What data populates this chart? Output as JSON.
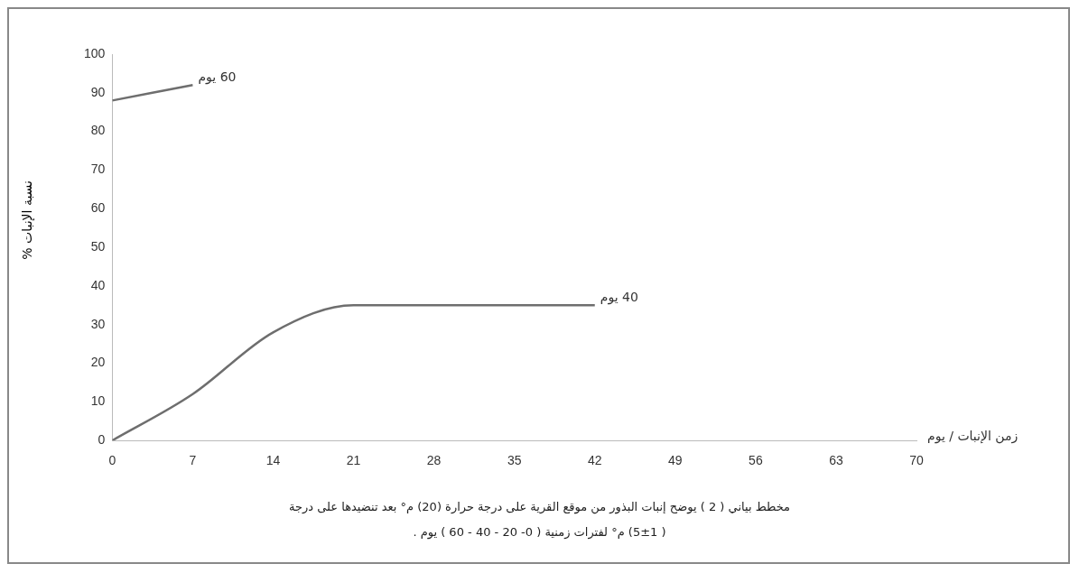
{
  "chart_data": {
    "type": "line",
    "xlabel": "زمن الإنبات / يوم",
    "ylabel": "نسبة الإنبات %",
    "xlim": [
      0,
      70
    ],
    "xticks": [
      0,
      7,
      14,
      21,
      28,
      35,
      42,
      49,
      56,
      63,
      70
    ],
    "ylim": [
      0,
      100
    ],
    "yticks": [
      0,
      10,
      20,
      30,
      40,
      50,
      60,
      70,
      80,
      90,
      100
    ],
    "grid": false,
    "legend": false,
    "series": [
      {
        "name": "60 يوم",
        "color": "#6e6e6e",
        "x": [
          0,
          7
        ],
        "values": [
          88,
          92
        ]
      },
      {
        "name": "40 يوم",
        "color": "#6e6e6e",
        "x": [
          0,
          7,
          14,
          21,
          28,
          35,
          42
        ],
        "values": [
          0,
          12,
          28,
          35,
          35,
          35,
          35
        ]
      }
    ],
    "annotations": [
      "مخطط بياني ( 2 ) يوضح إنبات البذور من موقع القرية على درجة حرارة (20) م° بعد تنضيدها على درجة",
      "( 5±1) م° لفترات زمنية ( 0- 20 - 40 - 60 ) يوم ."
    ]
  }
}
